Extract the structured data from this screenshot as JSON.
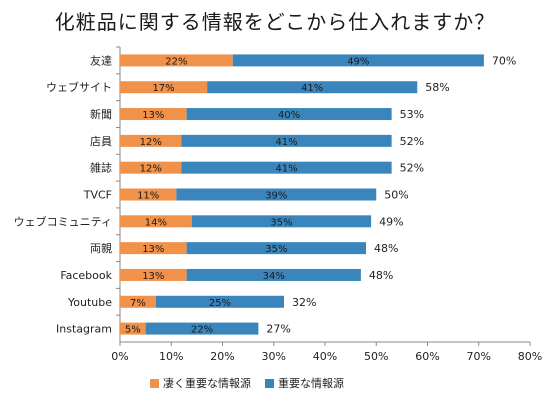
{
  "colors": {
    "very_important": "#f0924a",
    "important": "#3a86bc"
  },
  "chart_data": {
    "type": "bar",
    "orientation": "horizontal",
    "stacked": true,
    "title": "化粧品に関する情報をどこから仕入れますか？",
    "categories": [
      "友達",
      "ウェブサイト",
      "新聞",
      "店員",
      "雑誌",
      "TVCF",
      "ウェブコミュニティ",
      "両親",
      "Facebook",
      "Youtube",
      "Instagram"
    ],
    "series": [
      {
        "name": "凄く重要な情報源",
        "values": [
          22,
          17,
          13,
          12,
          12,
          11,
          14,
          13,
          13,
          7,
          5
        ],
        "labels": [
          "22%",
          "17%",
          "13%",
          "12%",
          "12%",
          "11%",
          "14%",
          "13%",
          "13%",
          "7%",
          "5%"
        ]
      },
      {
        "name": "重要な情報源",
        "values": [
          49,
          41,
          40,
          41,
          41,
          39,
          35,
          35,
          34,
          25,
          22
        ],
        "labels": [
          "49%",
          "41%",
          "40%",
          "41%",
          "41%",
          "39%",
          "35%",
          "35%",
          "34%",
          "25%",
          "22%"
        ]
      }
    ],
    "totals": [
      70,
      58,
      53,
      52,
      52,
      50,
      49,
      48,
      48,
      32,
      27
    ],
    "total_labels": [
      "70%",
      "58%",
      "53%",
      "52%",
      "52%",
      "50%",
      "49%",
      "48%",
      "48%",
      "32%",
      "27%"
    ],
    "xlim": [
      0,
      80
    ],
    "xticks": [
      0,
      10,
      20,
      30,
      40,
      50,
      60,
      70,
      80
    ],
    "xtick_labels": [
      "0%",
      "10%",
      "20%",
      "30%",
      "40%",
      "50%",
      "60%",
      "70%",
      "80%"
    ],
    "grid": false,
    "legend": "bottom"
  }
}
